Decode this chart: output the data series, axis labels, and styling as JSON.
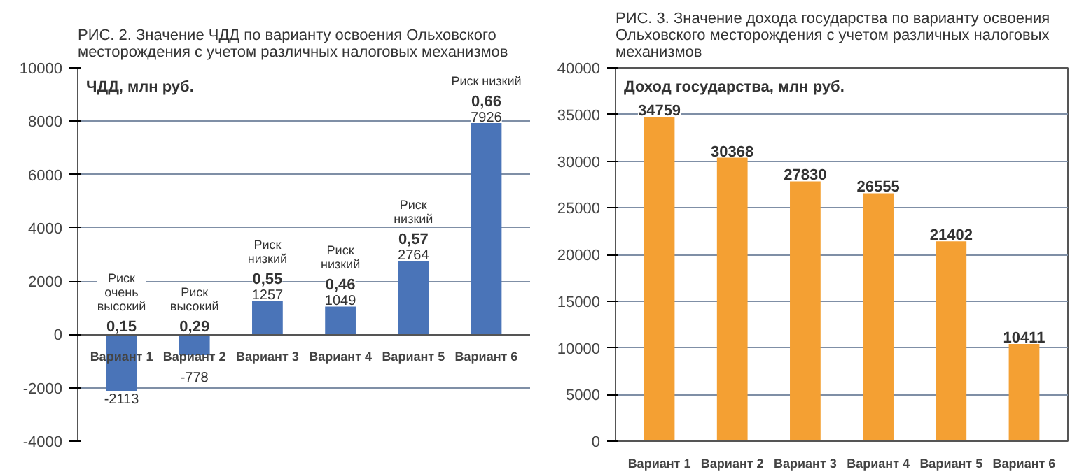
{
  "chart_data": [
    {
      "type": "bar",
      "title": "РИС. 2. Значение ЧДД по варианту освоения Ольховского\nместорождения с учетом различных налоговых механизмов",
      "ylabel": "ЧДД, млн руб.",
      "categories": [
        "Вариант 1",
        "Вариант 2",
        "Вариант 3",
        "Вариант 4",
        "Вариант 5",
        "Вариант 6"
      ],
      "values": [
        -2113,
        -778,
        1257,
        1049,
        2764,
        7926
      ],
      "color": "#4a74b8",
      "ylim": [
        -4000,
        10000
      ],
      "yticks": [
        -4000,
        -2000,
        0,
        2000,
        4000,
        6000,
        8000,
        10000
      ],
      "grid": "y",
      "data_labels": true,
      "annotations": [
        {
          "text": "Риск очень высокий",
          "x": "Вариант 1",
          "y": 0
        },
        {
          "text": "0,15",
          "x": "Вариант 1",
          "y": 0
        },
        {
          "text": "Риск высокий",
          "x": "Вариант 2",
          "y": 0
        },
        {
          "text": "0,29",
          "x": "Вариант 2",
          "y": 0
        },
        {
          "text": "Риск низкий",
          "x": "Вариант 3",
          "y": 1257
        },
        {
          "text": "0,55",
          "x": "Вариант 3",
          "y": 1257
        },
        {
          "text": "Риск низкий",
          "x": "Вариант 4",
          "y": 1049
        },
        {
          "text": "0,46",
          "x": "Вариант 4",
          "y": 1049
        },
        {
          "text": "Риск низкий",
          "x": "Вариант 5",
          "y": 2764
        },
        {
          "text": "0,57",
          "x": "Вариант 5",
          "y": 2764
        },
        {
          "text": "Риск низкий",
          "x": "Вариант 6",
          "y": 7926
        },
        {
          "text": "0,66",
          "x": "Вариант 6",
          "y": 7926
        }
      ]
    },
    {
      "type": "bar",
      "title": "РИС. 3. Значение дохода государства по варианту освоения\nОльховского месторождения с учетом различных налоговых\nмеханизмов",
      "ylabel": "Доход государства, млн руб.",
      "categories": [
        "Вариант 1",
        "Вариант 2",
        "Вариант 3",
        "Вариант 4",
        "Вариант 5",
        "Вариант 6"
      ],
      "values": [
        34759,
        30368,
        27830,
        26555,
        21402,
        10411
      ],
      "color": "#f4a033",
      "ylim": [
        0,
        40000
      ],
      "yticks": [
        0,
        5000,
        10000,
        15000,
        20000,
        25000,
        30000,
        35000,
        40000
      ],
      "grid": "y",
      "data_labels": true
    }
  ]
}
